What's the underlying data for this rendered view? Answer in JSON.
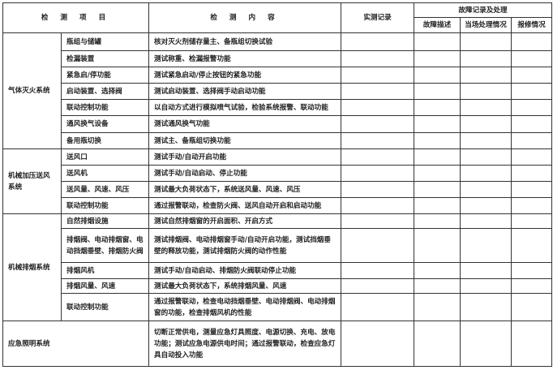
{
  "header": {
    "item": "检 测 项 目",
    "content": "检 测 内 容",
    "record": "实测记录",
    "fault_group": "故障记录及处理",
    "fault_desc": "故障描述",
    "onsite": "当场处理情况",
    "repair": "报修情况"
  },
  "systems": [
    {
      "name": "气体灭火系统",
      "items": [
        {
          "item": "瓶组与储罐",
          "content": "核对灭火剂储存量主、备瓶组切换试验"
        },
        {
          "item": "检漏装置",
          "content": "测试称重、检漏报警功能"
        },
        {
          "item": "紧急启/停功能",
          "content": "测试紧急启动/停止按钮的紧急功能"
        },
        {
          "item": "启动装置、选择阀",
          "content": "测试启动装置、选择阀手动启动功能"
        },
        {
          "item": "联动控制功能",
          "content": "以自动方式进行模拟喷气试验，检验系统报警、联动功能"
        },
        {
          "item": "通风换气设备",
          "content": "测试通风换气功能"
        },
        {
          "item": "备用瓶切换",
          "content": "测试主、备瓶组切换功能"
        }
      ]
    },
    {
      "name": "机械加压送风系统",
      "items": [
        {
          "item": "送风口",
          "content": "测试手动/自动开启功能"
        },
        {
          "item": "送风机",
          "content": "测试手动/自动启动、停止功能"
        },
        {
          "item": "送风量、风速、风压",
          "content": "测试最大负荷状态下，系统送风量、风速、风压"
        },
        {
          "item": "联动控制功能",
          "content": "通过报警联动，检查防火阀、送风自动开启和启动功能"
        }
      ]
    },
    {
      "name": "机械排烟系统",
      "items": [
        {
          "item": "自然排烟设施",
          "content": "测试自然排烟窗的开启面积、开启方式"
        },
        {
          "item": "排烟阀、电动排烟窗、电动挡烟垂壁、排烟防火阀",
          "content": "测试排烟阀、电动排烟窗手动/自动开启功能，测试挡烟垂壁的释放功能，测试排烟防火阀的动作性能"
        },
        {
          "item": "排烟风机",
          "content": "测试手动/自动启动、排烟防火阀联动停止功能"
        },
        {
          "item": "排烟风量、风速",
          "content": "测试最大负荷状态下，系统排烟风量、风速"
        },
        {
          "item": "联动控制功能",
          "content": "通过报警联动，检查电动挡烟垂壁、电动排烟阀、电动排烟窗的功能，检查排烟风机的性能"
        }
      ]
    },
    {
      "name": "应急照明系统",
      "items": [
        {
          "item": "",
          "content": "切断正常供电，测量应急灯具照度、电源切换、充电、放电功能；测试应急电源供电时间；通过报警联动，检查应急灯具自动投入功能"
        }
      ]
    }
  ]
}
